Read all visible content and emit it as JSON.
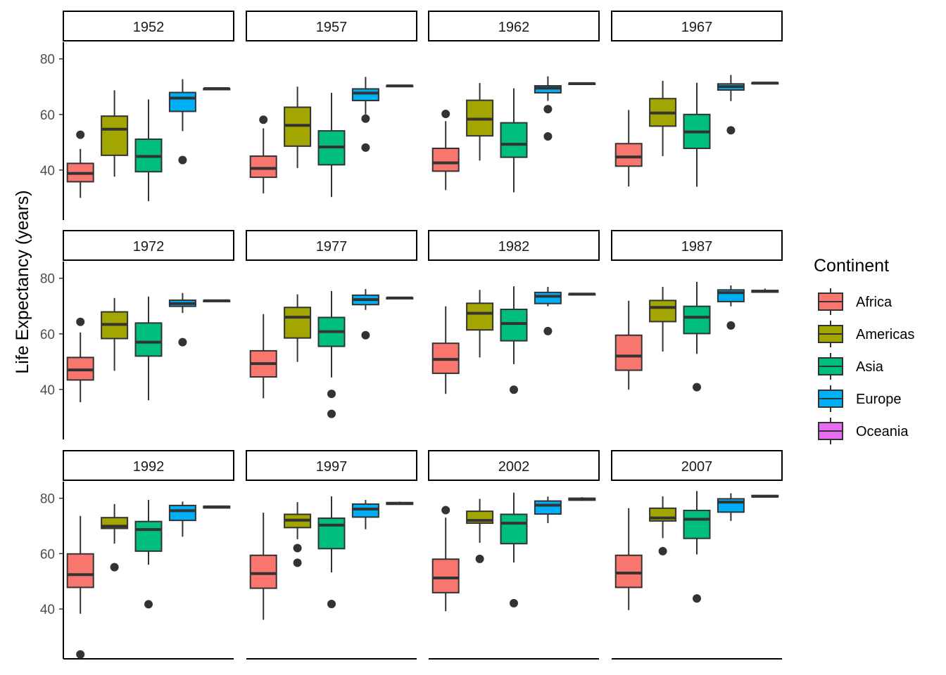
{
  "chart_data": {
    "type": "box",
    "ylabel": "Life Expectancy (years)",
    "xlabel": "",
    "yticks": [
      40,
      60,
      80
    ],
    "ylim": [
      22,
      86
    ],
    "legend": {
      "title": "Continent",
      "position": "right",
      "entries": [
        "Africa",
        "Americas",
        "Asia",
        "Europe",
        "Oceania"
      ]
    },
    "colors": {
      "Africa": "#F8766D",
      "Americas": "#A3A500",
      "Asia": "#00BF7D",
      "Europe": "#00B0F6",
      "Oceania": "#E76BF3"
    },
    "panels": [
      {
        "year": "1952",
        "boxes": [
          {
            "group": "Africa",
            "whislo": 30.0,
            "q1": 35.8,
            "med": 38.8,
            "q3": 42.4,
            "whishi": 47.6,
            "fliers": [
              52.7
            ]
          },
          {
            "group": "Americas",
            "whislo": 37.6,
            "q1": 45.3,
            "med": 54.7,
            "q3": 59.4,
            "whishi": 68.7,
            "fliers": []
          },
          {
            "group": "Asia",
            "whislo": 28.8,
            "q1": 39.4,
            "med": 44.9,
            "q3": 51.1,
            "whishi": 65.4,
            "fliers": []
          },
          {
            "group": "Europe",
            "whislo": 54.0,
            "q1": 61.1,
            "med": 65.9,
            "q3": 67.9,
            "whishi": 72.7,
            "fliers": [
              43.6
            ]
          },
          {
            "group": "Oceania",
            "whislo": 69.1,
            "q1": 69.2,
            "med": 69.3,
            "q3": 69.3,
            "whishi": 69.4,
            "fliers": []
          }
        ]
      },
      {
        "year": "1957",
        "boxes": [
          {
            "group": "Africa",
            "whislo": 31.6,
            "q1": 37.4,
            "med": 40.6,
            "q3": 45.0,
            "whishi": 55.0,
            "fliers": [
              58.1
            ]
          },
          {
            "group": "Americas",
            "whislo": 40.7,
            "q1": 48.6,
            "med": 56.1,
            "q3": 62.6,
            "whishi": 70.0,
            "fliers": []
          },
          {
            "group": "Asia",
            "whislo": 30.3,
            "q1": 41.9,
            "med": 48.3,
            "q3": 54.1,
            "whishi": 67.8,
            "fliers": []
          },
          {
            "group": "Europe",
            "whislo": 60.0,
            "q1": 65.0,
            "med": 67.7,
            "q3": 69.2,
            "whishi": 73.5,
            "fliers": [
              58.5,
              48.1
            ]
          },
          {
            "group": "Oceania",
            "whislo": 70.0,
            "q1": 70.2,
            "med": 70.3,
            "q3": 70.4,
            "whishi": 70.6,
            "fliers": []
          }
        ]
      },
      {
        "year": "1962",
        "boxes": [
          {
            "group": "Africa",
            "whislo": 32.8,
            "q1": 39.6,
            "med": 42.6,
            "q3": 47.8,
            "whishi": 57.6,
            "fliers": [
              60.2
            ]
          },
          {
            "group": "Americas",
            "whislo": 43.4,
            "q1": 52.3,
            "med": 58.3,
            "q3": 65.1,
            "whishi": 71.3,
            "fliers": []
          },
          {
            "group": "Asia",
            "whislo": 32.0,
            "q1": 44.6,
            "med": 49.3,
            "q3": 57.0,
            "whishi": 69.4,
            "fliers": []
          },
          {
            "group": "Europe",
            "whislo": 64.9,
            "q1": 67.8,
            "med": 69.5,
            "q3": 70.3,
            "whishi": 73.7,
            "fliers": [
              61.9,
              52.1
            ]
          },
          {
            "group": "Oceania",
            "whislo": 70.9,
            "q1": 71.0,
            "med": 71.1,
            "q3": 71.2,
            "whishi": 71.2,
            "fliers": []
          }
        ]
      },
      {
        "year": "1967",
        "boxes": [
          {
            "group": "Africa",
            "whislo": 34.1,
            "q1": 41.4,
            "med": 44.7,
            "q3": 49.5,
            "whishi": 61.6,
            "fliers": []
          },
          {
            "group": "Americas",
            "whislo": 45.0,
            "q1": 55.8,
            "med": 60.5,
            "q3": 65.7,
            "whishi": 72.1,
            "fliers": []
          },
          {
            "group": "Asia",
            "whislo": 34.0,
            "q1": 47.8,
            "med": 53.7,
            "q3": 60.0,
            "whishi": 71.4,
            "fliers": []
          },
          {
            "group": "Europe",
            "whislo": 64.8,
            "q1": 68.8,
            "med": 70.0,
            "q3": 71.0,
            "whishi": 74.2,
            "fliers": [
              54.3
            ]
          },
          {
            "group": "Oceania",
            "whislo": 71.1,
            "q1": 71.2,
            "med": 71.3,
            "q3": 71.4,
            "whishi": 71.5,
            "fliers": []
          }
        ]
      },
      {
        "year": "1972",
        "boxes": [
          {
            "group": "Africa",
            "whislo": 35.4,
            "q1": 43.4,
            "med": 47.0,
            "q3": 51.5,
            "whishi": 60.5,
            "fliers": [
              64.3
            ]
          },
          {
            "group": "Americas",
            "whislo": 46.7,
            "q1": 58.3,
            "med": 63.4,
            "q3": 67.9,
            "whishi": 72.9,
            "fliers": []
          },
          {
            "group": "Asia",
            "whislo": 36.1,
            "q1": 52.0,
            "med": 57.0,
            "q3": 63.9,
            "whishi": 73.4,
            "fliers": []
          },
          {
            "group": "Europe",
            "whislo": 67.5,
            "q1": 69.9,
            "med": 70.9,
            "q3": 72.1,
            "whishi": 74.7,
            "fliers": [
              57.0
            ]
          },
          {
            "group": "Oceania",
            "whislo": 71.7,
            "q1": 71.8,
            "med": 71.9,
            "q3": 72.0,
            "whishi": 72.2,
            "fliers": []
          }
        ]
      },
      {
        "year": "1977",
        "boxes": [
          {
            "group": "Africa",
            "whislo": 36.8,
            "q1": 44.5,
            "med": 49.3,
            "q3": 53.9,
            "whishi": 67.1,
            "fliers": []
          },
          {
            "group": "Americas",
            "whislo": 49.9,
            "q1": 58.5,
            "med": 66.0,
            "q3": 69.5,
            "whishi": 74.2,
            "fliers": []
          },
          {
            "group": "Asia",
            "whislo": 44.3,
            "q1": 55.5,
            "med": 60.8,
            "q3": 65.9,
            "whishi": 75.4,
            "fliers": [
              38.4,
              31.2
            ]
          },
          {
            "group": "Europe",
            "whislo": 68.6,
            "q1": 70.5,
            "med": 72.3,
            "q3": 73.9,
            "whishi": 76.1,
            "fliers": [
              59.5
            ]
          },
          {
            "group": "Oceania",
            "whislo": 72.6,
            "q1": 72.7,
            "med": 72.9,
            "q3": 73.0,
            "whishi": 73.2,
            "fliers": []
          }
        ]
      },
      {
        "year": "1982",
        "boxes": [
          {
            "group": "Africa",
            "whislo": 38.4,
            "q1": 45.8,
            "med": 50.8,
            "q3": 56.6,
            "whishi": 69.9,
            "fliers": []
          },
          {
            "group": "Americas",
            "whislo": 51.5,
            "q1": 61.4,
            "med": 67.4,
            "q3": 71.0,
            "whishi": 75.8,
            "fliers": []
          },
          {
            "group": "Asia",
            "whislo": 49.1,
            "q1": 57.5,
            "med": 63.7,
            "q3": 68.8,
            "whishi": 77.1,
            "fliers": [
              39.9
            ]
          },
          {
            "group": "Europe",
            "whislo": 69.9,
            "q1": 70.9,
            "med": 73.5,
            "q3": 74.9,
            "whishi": 76.9,
            "fliers": [
              61.0
            ]
          },
          {
            "group": "Oceania",
            "whislo": 74.2,
            "q1": 74.3,
            "med": 74.3,
            "q3": 74.4,
            "whishi": 74.5,
            "fliers": []
          }
        ]
      },
      {
        "year": "1987",
        "boxes": [
          {
            "group": "Africa",
            "whislo": 39.9,
            "q1": 46.9,
            "med": 52.0,
            "q3": 59.5,
            "whishi": 71.9,
            "fliers": []
          },
          {
            "group": "Americas",
            "whislo": 53.6,
            "q1": 64.4,
            "med": 69.5,
            "q3": 72.0,
            "whishi": 76.9,
            "fliers": []
          },
          {
            "group": "Asia",
            "whislo": 52.8,
            "q1": 60.1,
            "med": 66.0,
            "q3": 69.9,
            "whishi": 78.7,
            "fliers": [
              40.8
            ]
          },
          {
            "group": "Europe",
            "whislo": 69.9,
            "q1": 71.6,
            "med": 74.8,
            "q3": 75.8,
            "whishi": 77.4,
            "fliers": [
              63.0
            ]
          },
          {
            "group": "Oceania",
            "whislo": 74.9,
            "q1": 75.0,
            "med": 75.3,
            "q3": 75.6,
            "whishi": 76.3,
            "fliers": []
          }
        ]
      },
      {
        "year": "1992",
        "boxes": [
          {
            "group": "Africa",
            "whislo": 38.3,
            "q1": 47.8,
            "med": 52.4,
            "q3": 59.9,
            "whishi": 73.6,
            "fliers": [
              23.6
            ]
          },
          {
            "group": "Americas",
            "whislo": 63.6,
            "q1": 69.1,
            "med": 69.9,
            "q3": 73.0,
            "whishi": 77.9,
            "fliers": [
              55.1
            ]
          },
          {
            "group": "Asia",
            "whislo": 56.0,
            "q1": 60.9,
            "med": 68.7,
            "q3": 71.6,
            "whishi": 79.4,
            "fliers": [
              41.7
            ]
          },
          {
            "group": "Europe",
            "whislo": 66.1,
            "q1": 72.0,
            "med": 75.5,
            "q3": 77.4,
            "whishi": 78.8,
            "fliers": []
          },
          {
            "group": "Oceania",
            "whislo": 76.3,
            "q1": 76.5,
            "med": 76.9,
            "q3": 77.1,
            "whishi": 77.2,
            "fliers": []
          }
        ]
      },
      {
        "year": "1997",
        "boxes": [
          {
            "group": "Africa",
            "whislo": 36.1,
            "q1": 47.5,
            "med": 52.8,
            "q3": 59.4,
            "whishi": 74.8,
            "fliers": []
          },
          {
            "group": "Americas",
            "whislo": 65.2,
            "q1": 69.4,
            "med": 72.1,
            "q3": 74.2,
            "whishi": 78.6,
            "fliers": [
              62.0,
              56.7
            ]
          },
          {
            "group": "Asia",
            "whislo": 53.2,
            "q1": 61.8,
            "med": 70.3,
            "q3": 72.8,
            "whishi": 80.7,
            "fliers": [
              41.8
            ]
          },
          {
            "group": "Europe",
            "whislo": 68.8,
            "q1": 73.2,
            "med": 76.1,
            "q3": 77.9,
            "whishi": 79.4,
            "fliers": []
          },
          {
            "group": "Oceania",
            "whislo": 77.6,
            "q1": 77.8,
            "med": 78.2,
            "q3": 78.4,
            "whishi": 78.8,
            "fliers": []
          }
        ]
      },
      {
        "year": "2002",
        "boxes": [
          {
            "group": "Africa",
            "whislo": 39.2,
            "q1": 45.9,
            "med": 51.2,
            "q3": 58.0,
            "whishi": 73.0,
            "fliers": [
              75.7
            ]
          },
          {
            "group": "Americas",
            "whislo": 63.9,
            "q1": 71.0,
            "med": 72.0,
            "q3": 75.3,
            "whishi": 79.8,
            "fliers": [
              58.1
            ]
          },
          {
            "group": "Asia",
            "whislo": 56.8,
            "q1": 63.6,
            "med": 71.0,
            "q3": 74.2,
            "whishi": 82.0,
            "fliers": [
              42.1
            ]
          },
          {
            "group": "Europe",
            "whislo": 71.0,
            "q1": 74.3,
            "med": 77.5,
            "q3": 79.0,
            "whishi": 80.6,
            "fliers": []
          },
          {
            "group": "Oceania",
            "whislo": 79.1,
            "q1": 79.3,
            "med": 79.7,
            "q3": 80.0,
            "whishi": 80.4,
            "fliers": []
          }
        ]
      },
      {
        "year": "2007",
        "boxes": [
          {
            "group": "Africa",
            "whislo": 39.6,
            "q1": 47.8,
            "med": 53.0,
            "q3": 59.4,
            "whishi": 76.4,
            "fliers": []
          },
          {
            "group": "Americas",
            "whislo": 65.6,
            "q1": 71.8,
            "med": 72.9,
            "q3": 76.4,
            "whishi": 80.7,
            "fliers": [
              60.9
            ]
          },
          {
            "group": "Asia",
            "whislo": 59.7,
            "q1": 65.5,
            "med": 72.4,
            "q3": 75.6,
            "whishi": 82.6,
            "fliers": [
              43.8
            ]
          },
          {
            "group": "Europe",
            "whislo": 71.8,
            "q1": 75.0,
            "med": 78.6,
            "q3": 79.8,
            "whishi": 81.8,
            "fliers": []
          },
          {
            "group": "Oceania",
            "whislo": 80.2,
            "q1": 80.5,
            "med": 80.7,
            "q3": 81.0,
            "whishi": 81.2,
            "fliers": []
          }
        ]
      }
    ]
  }
}
